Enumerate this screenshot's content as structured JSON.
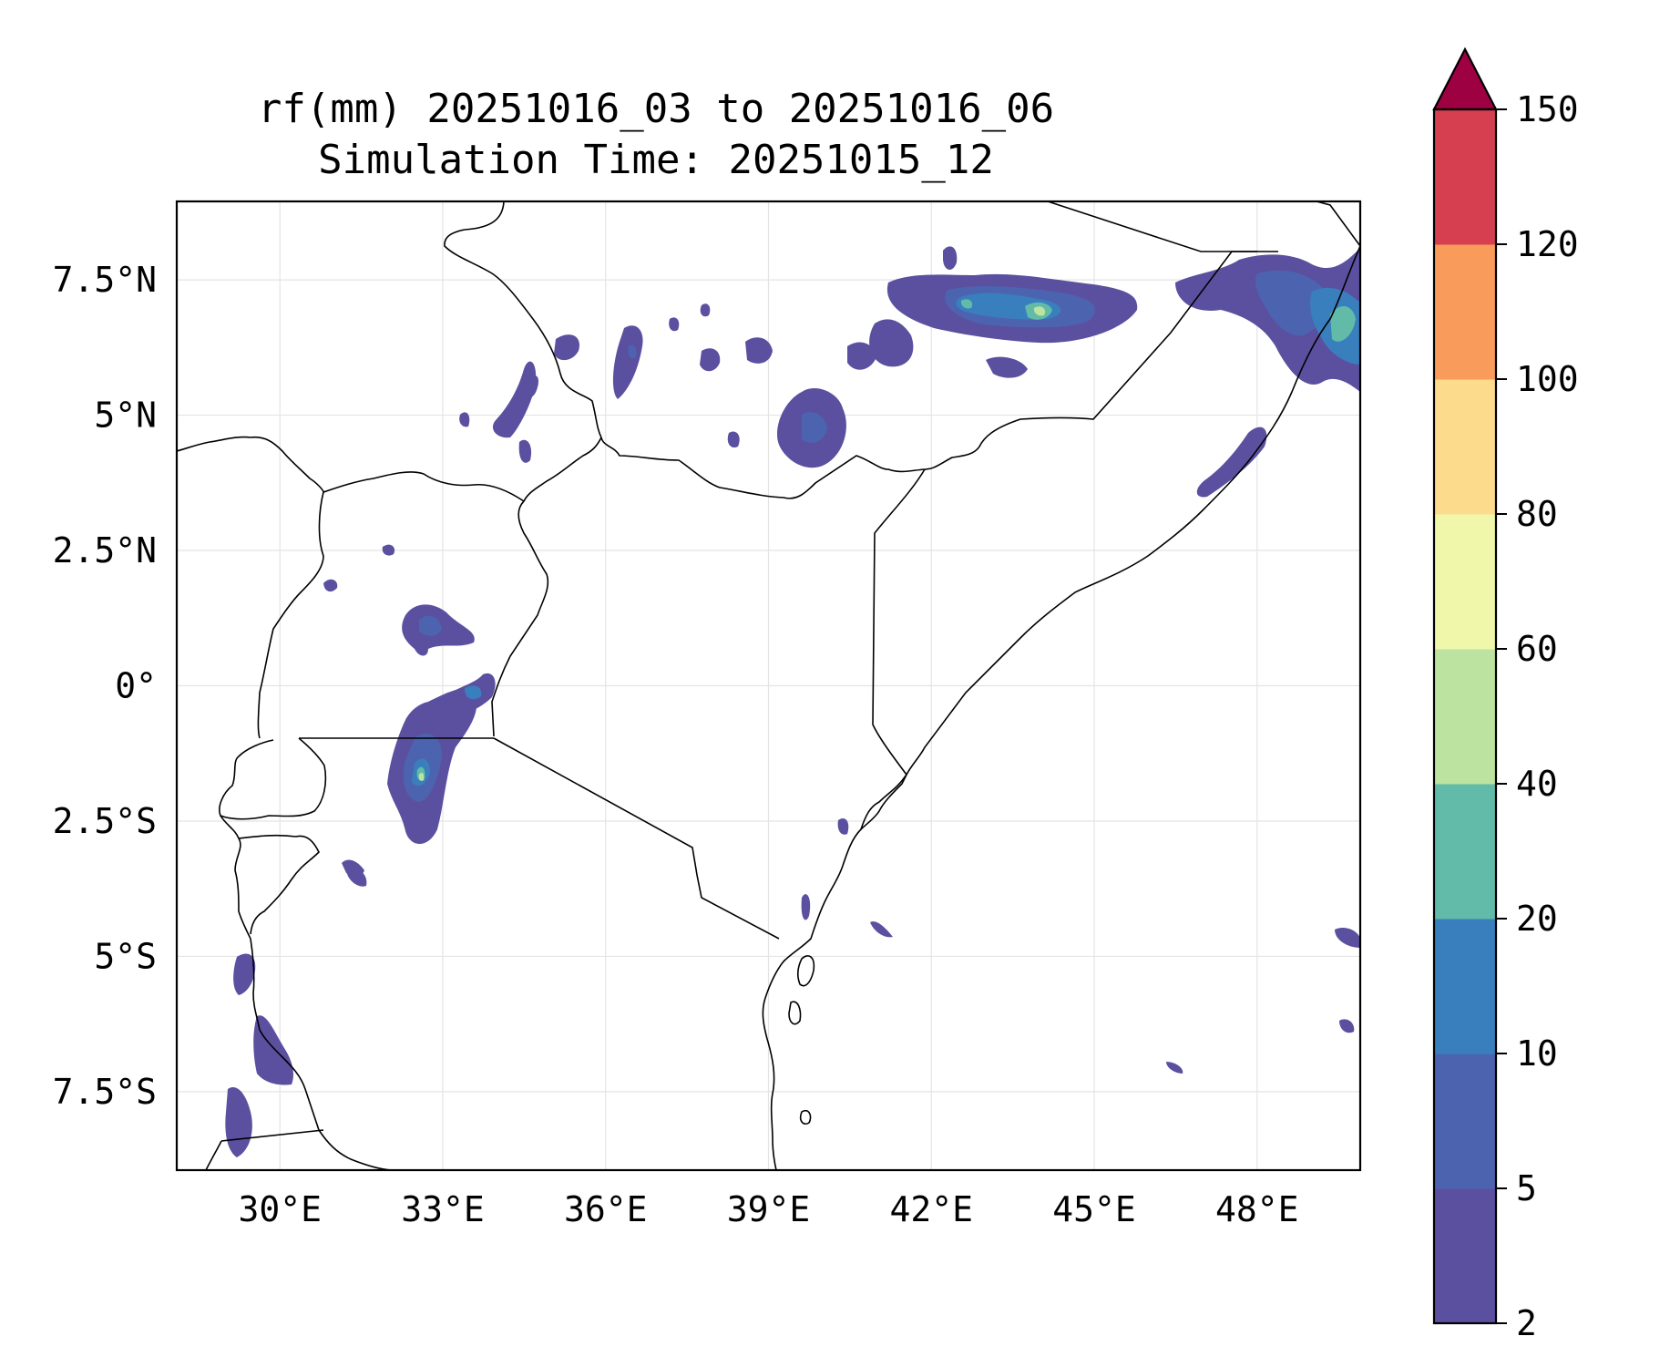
{
  "title": {
    "line1": "rf(mm) 20251016_03 to 20251016_06",
    "line2": "Simulation Time: 20251015_12"
  },
  "map": {
    "lon_range": [
      28.1,
      49.9
    ],
    "lat_range": [
      -8.95,
      8.95
    ],
    "x_ticks": [
      {
        "value": 30,
        "label": "30°E"
      },
      {
        "value": 33,
        "label": "33°E"
      },
      {
        "value": 36,
        "label": "36°E"
      },
      {
        "value": 39,
        "label": "39°E"
      },
      {
        "value": 42,
        "label": "42°E"
      },
      {
        "value": 45,
        "label": "45°E"
      },
      {
        "value": 48,
        "label": "48°E"
      }
    ],
    "y_ticks": [
      {
        "value": 7.5,
        "label": "7.5°N"
      },
      {
        "value": 5,
        "label": "5°N"
      },
      {
        "value": 2.5,
        "label": "2.5°N"
      },
      {
        "value": 0,
        "label": "0°"
      },
      {
        "value": -2.5,
        "label": "2.5°S"
      },
      {
        "value": -5,
        "label": "5°S"
      },
      {
        "value": -7.5,
        "label": "7.5°S"
      }
    ],
    "gridlines": true
  },
  "colorbar": {
    "levels": [
      2,
      5,
      10,
      20,
      40,
      60,
      80,
      100,
      120,
      150
    ],
    "colors": [
      "#5b50a0",
      "#4c64b0",
      "#3a7fbd",
      "#62bba8",
      "#bde3a0",
      "#f1f7aa",
      "#fcdc8c",
      "#f99b5a",
      "#d63f50"
    ],
    "extend_color": "#9e0142",
    "extend": "max",
    "label_texts": [
      "2",
      "5",
      "10",
      "20",
      "40",
      "60",
      "80",
      "100",
      "120",
      "150"
    ]
  },
  "rain_areas": [
    {
      "name": "northern-ethiopia-band",
      "level": 10
    },
    {
      "name": "somaliland-coast",
      "level": 20
    },
    {
      "name": "southwest-ethiopia",
      "level": 5
    },
    {
      "name": "lake-victoria-east",
      "level": 20
    },
    {
      "name": "central-uganda",
      "level": 10
    },
    {
      "name": "lake-tanganyika",
      "level": 5
    },
    {
      "name": "somalia-coast-north",
      "level": 5
    }
  ]
}
